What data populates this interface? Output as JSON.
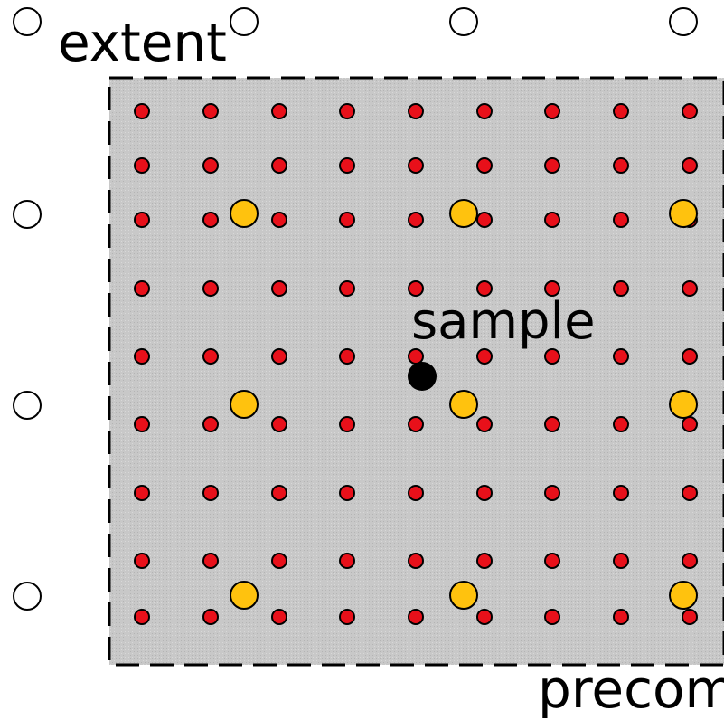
{
  "labels": {
    "extent": "extent",
    "sample": "sample",
    "precomputed": "precom"
  },
  "colors": {
    "region_fill": "#c8c8c8",
    "region_border": "#000000",
    "fine_grid_dot": "#e8101a",
    "coarse_grid_dot": "#ffc20e",
    "sample_point": "#000000",
    "extent_marker": "#ffffff",
    "outline": "#000000",
    "background": "#ffffff"
  },
  "legend": {
    "fine_grid_dot": "red-dot-icon",
    "coarse_grid_dot": "yellow-dot-icon",
    "sample_point": "black-dot-icon",
    "extent_marker": "hollow-circle-icon"
  }
}
